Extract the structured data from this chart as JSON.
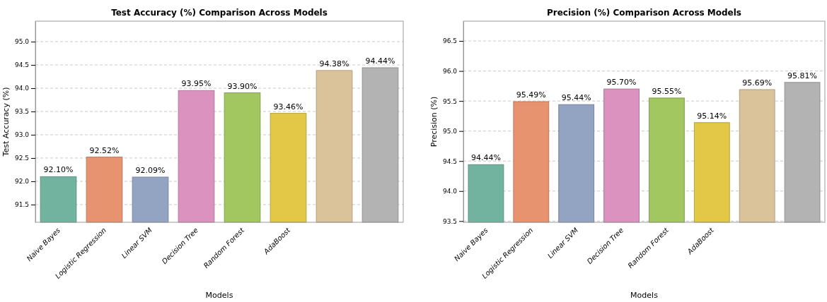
{
  "chart_data": [
    {
      "type": "bar",
      "title": "Test Accuracy (%) Comparison Across Models",
      "xlabel": "Models",
      "ylabel": "Test Accuracy (%)",
      "categories": [
        "Naive Bayes",
        "Logistic Regression",
        "Linear SVM",
        "Decision Tree",
        "Random Forest",
        "AdaBoost",
        null,
        null
      ],
      "values": [
        92.1,
        92.52,
        92.09,
        93.95,
        93.9,
        93.46,
        94.38,
        94.44
      ],
      "colors": [
        "#72b3a0",
        "#e8936f",
        "#93a3c2",
        "#db92bf",
        "#a2c660",
        "#e2c846",
        "#dac29b",
        "#b3b3b3"
      ],
      "value_labels": [
        "92.10%",
        "92.52%",
        "92.09%",
        "93.95%",
        "93.90%",
        "93.46%",
        "94.38%",
        "94.44%"
      ],
      "ylim": [
        91.12,
        95.44
      ],
      "yticks": [
        91.5,
        {
          "value": 92,
          "label": "92.0"
        },
        92.5,
        {
          "value": 93,
          "label": "93.0"
        },
        93.5,
        {
          "value": 94,
          "label": "94.0"
        },
        94.5,
        {
          "value": 95,
          "label": "95.0"
        }
      ],
      "grid": "y"
    },
    {
      "type": "bar",
      "title": "Precision (%) Comparison Across Models",
      "xlabel": "Models",
      "ylabel": "Precision (%)",
      "categories": [
        "Naive Bayes",
        "Logistic Regression",
        "Linear SVM",
        "Decision Tree",
        "Random Forest",
        "AdaBoost",
        null,
        null
      ],
      "values": [
        94.44,
        95.49,
        95.44,
        95.7,
        95.55,
        95.14,
        95.69,
        95.81
      ],
      "colors": [
        "#72b3a0",
        "#e8936f",
        "#93a3c2",
        "#db92bf",
        "#a2c660",
        "#e2c846",
        "#dac29b",
        "#b3b3b3"
      ],
      "value_labels": [
        "94.44%",
        "95.49%",
        "95.44%",
        "95.70%",
        "95.55%",
        "95.14%",
        "95.69%",
        "95.81%"
      ],
      "ylim": [
        93.48,
        96.83
      ],
      "yticks": [
        93.5,
        {
          "value": 94,
          "label": "94.0"
        },
        94.5,
        {
          "value": 95,
          "label": "95.0"
        },
        95.5,
        {
          "value": 96,
          "label": "96.0"
        },
        96.5
      ],
      "grid": "y"
    }
  ]
}
